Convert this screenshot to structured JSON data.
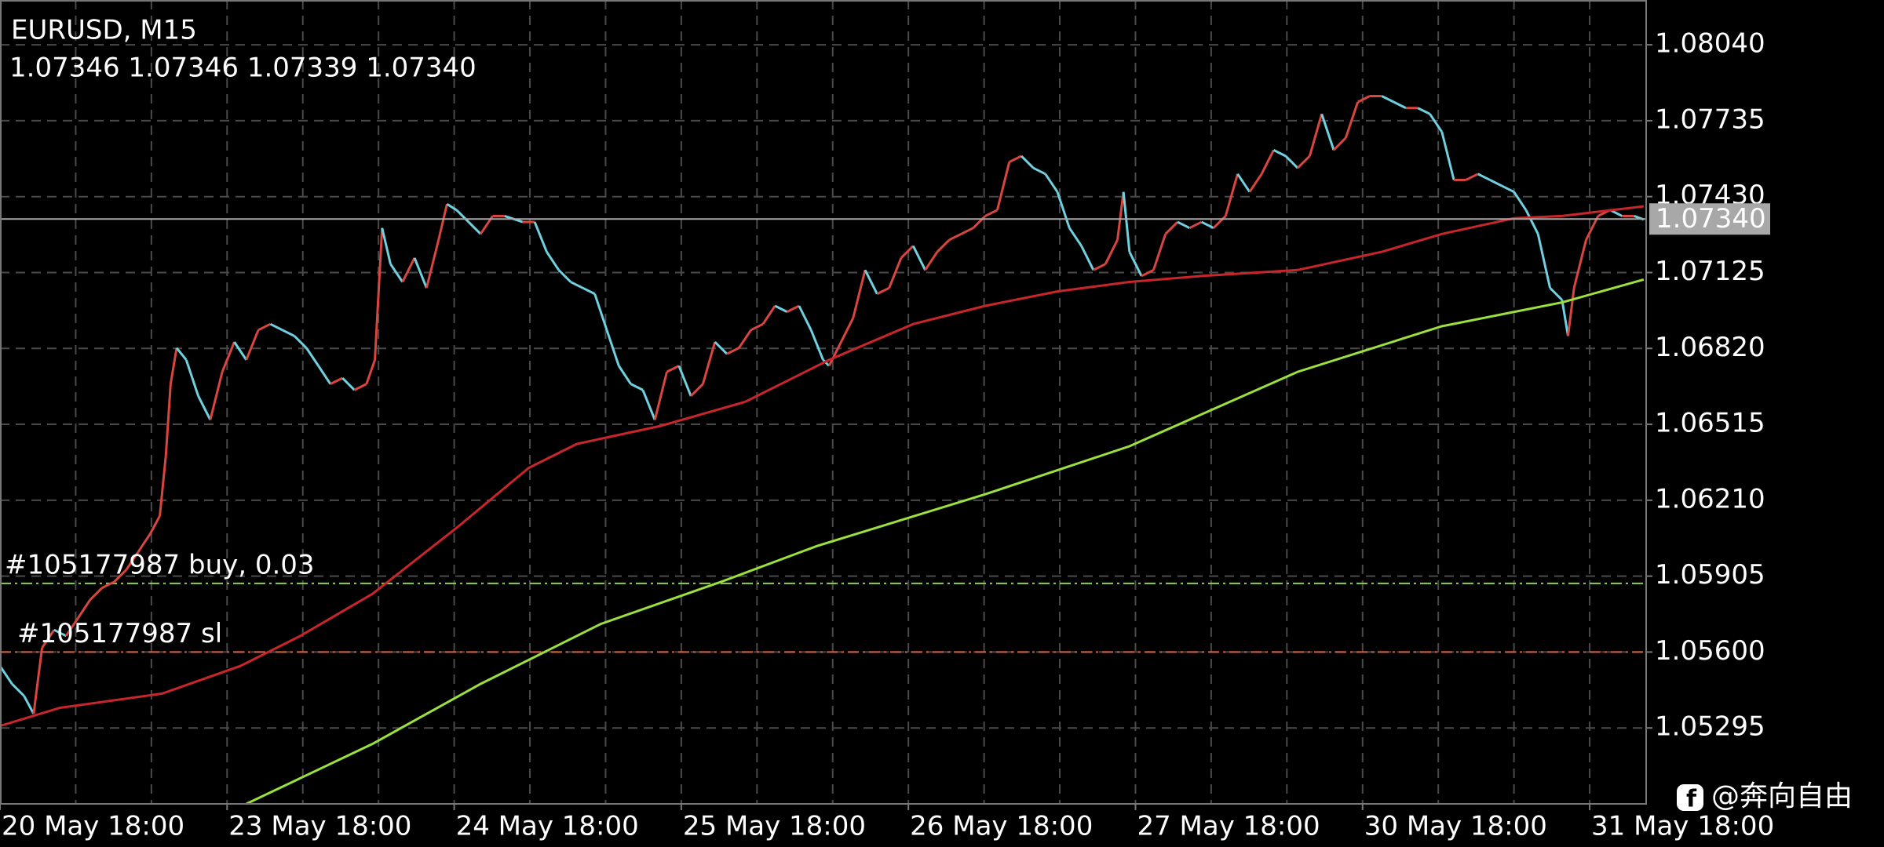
{
  "chart_data": {
    "type": "line",
    "title": "EURUSD, M15",
    "subtitle": "1.07346 1.07346 1.07339 1.07340",
    "xlim": [
      0,
      1370
    ],
    "ylim": [
      1.0499,
      1.0822
    ],
    "xticks": [
      {
        "value": 0,
        "label": "20 May 18:00"
      },
      {
        "value": 63,
        "label": null
      },
      {
        "value": 126,
        "label": null
      },
      {
        "value": 189,
        "label": "23 May 18:00"
      },
      {
        "value": 252,
        "label": null
      },
      {
        "value": 315,
        "label": null
      },
      {
        "value": 378,
        "label": "24 May 18:00"
      },
      {
        "value": 441,
        "label": null
      },
      {
        "value": 504,
        "label": null
      },
      {
        "value": 567,
        "label": "25 May 18:00"
      },
      {
        "value": 630,
        "label": null
      },
      {
        "value": 693,
        "label": null
      },
      {
        "value": 756,
        "label": "26 May 18:00"
      },
      {
        "value": 819,
        "label": null
      },
      {
        "value": 882,
        "label": null
      },
      {
        "value": 945,
        "label": "27 May 18:00"
      },
      {
        "value": 1008,
        "label": null
      },
      {
        "value": 1071,
        "label": null
      },
      {
        "value": 1134,
        "label": "30 May 18:00"
      },
      {
        "value": 1197,
        "label": null
      },
      {
        "value": 1260,
        "label": null
      },
      {
        "value": 1323,
        "label": "31 May 18:00"
      }
    ],
    "yticks": [
      {
        "value": 1.0804,
        "label": "1.08040"
      },
      1.07735,
      {
        "value": 1.0743,
        "label": "1.07430"
      },
      1.07125,
      {
        "value": 1.0682,
        "label": "1.06820"
      },
      1.06515,
      {
        "value": 1.0621,
        "label": "1.06210"
      },
      1.05905,
      {
        "value": 1.056,
        "label": "1.05600"
      },
      1.05295
    ],
    "grid": true,
    "up_color": "#d9453f",
    "down_color": "#6fd0e0",
    "series": [
      {
        "x": [
          0,
          10,
          20,
          28,
          35,
          45,
          55,
          65,
          75,
          85,
          95,
          105,
          115,
          125,
          133,
          138,
          142,
          147,
          155,
          165,
          175,
          185,
          195,
          205,
          215,
          225,
          235,
          245,
          255,
          265,
          275,
          285,
          295,
          305,
          312,
          318,
          325,
          335,
          345,
          355,
          365,
          372,
          380,
          390,
          400,
          410,
          420,
          435,
          445,
          455,
          465,
          475,
          485,
          495,
          505,
          515,
          525,
          535,
          545,
          555,
          565,
          575,
          585,
          595,
          605,
          615,
          625,
          635,
          645,
          655,
          665,
          675,
          685,
          690,
          700,
          710,
          720,
          730,
          740,
          750,
          760,
          770,
          780,
          790,
          800,
          810,
          820,
          830,
          840,
          850,
          860,
          870,
          880,
          890,
          900,
          910,
          920,
          930,
          935,
          940,
          950,
          960,
          970,
          980,
          990,
          1000,
          1010,
          1020,
          1030,
          1040,
          1050,
          1060,
          1070,
          1080,
          1090,
          1100,
          1110,
          1120,
          1130,
          1140,
          1150,
          1160,
          1170,
          1180,
          1190,
          1200,
          1210,
          1220,
          1230,
          1240,
          1250,
          1260,
          1270,
          1280,
          1290,
          1300,
          1305,
          1310,
          1320,
          1330,
          1340,
          1350,
          1360,
          1368
        ],
        "values": [
          1.05544,
          1.05472,
          1.05424,
          1.05352,
          1.05617,
          1.05689,
          1.05665,
          1.05737,
          1.0581,
          1.05858,
          1.05882,
          1.0593,
          1.06002,
          1.06075,
          1.06147,
          1.06388,
          1.06677,
          1.06822,
          1.06774,
          1.06629,
          1.06533,
          1.06726,
          1.06846,
          1.06774,
          1.06894,
          1.06918,
          1.06894,
          1.0687,
          1.06822,
          1.0675,
          1.06677,
          1.06701,
          1.06653,
          1.06677,
          1.06774,
          1.07304,
          1.07159,
          1.07087,
          1.07184,
          1.07063,
          1.07256,
          1.074,
          1.07376,
          1.07328,
          1.0728,
          1.07352,
          1.07352,
          1.07328,
          1.07328,
          1.07208,
          1.07135,
          1.07087,
          1.07063,
          1.07039,
          1.06894,
          1.0675,
          1.06677,
          1.06653,
          1.06533,
          1.06726,
          1.0675,
          1.06629,
          1.06677,
          1.06846,
          1.06798,
          1.06822,
          1.06894,
          1.06918,
          1.06991,
          1.06967,
          1.06991,
          1.06894,
          1.06774,
          1.0675,
          1.06846,
          1.06942,
          1.07135,
          1.07039,
          1.07063,
          1.07184,
          1.07232,
          1.07135,
          1.07208,
          1.07256,
          1.0728,
          1.07304,
          1.07352,
          1.07376,
          1.07569,
          1.07593,
          1.07545,
          1.07521,
          1.07449,
          1.07304,
          1.07232,
          1.07135,
          1.07159,
          1.07256,
          1.07449,
          1.07208,
          1.07111,
          1.07135,
          1.0728,
          1.07328,
          1.07304,
          1.07328,
          1.07304,
          1.07352,
          1.07521,
          1.07449,
          1.07521,
          1.07617,
          1.07593,
          1.07545,
          1.07593,
          1.07762,
          1.07617,
          1.07666,
          1.0781,
          1.07834,
          1.07834,
          1.0781,
          1.07786,
          1.07786,
          1.07762,
          1.0769,
          1.07497,
          1.07497,
          1.07521,
          1.07497,
          1.07473,
          1.07449,
          1.07376,
          1.0728,
          1.07063,
          1.07015,
          1.0687,
          1.07063,
          1.07256,
          1.07352,
          1.07376,
          1.07352,
          1.07352,
          1.07338
        ]
      },
      {
        "color": "#c8262a",
        "x": [
          0,
          50,
          135,
          200,
          250,
          310,
          380,
          440,
          480,
          550,
          620,
          690,
          760,
          820,
          880,
          940,
          1000,
          1080,
          1150,
          1200,
          1260,
          1300,
          1368
        ],
        "values": [
          1.05303,
          1.05376,
          1.05433,
          1.05544,
          1.05665,
          1.05834,
          1.06099,
          1.0634,
          1.06436,
          1.06509,
          1.06605,
          1.06774,
          1.06918,
          1.06991,
          1.07049,
          1.07087,
          1.07111,
          1.07135,
          1.07208,
          1.0728,
          1.07343,
          1.07352,
          1.07391
        ]
      },
      {
        "color": "#9be03c",
        "x": [
          205,
          310,
          400,
          500,
          600,
          680,
          820,
          940,
          1080,
          1200,
          1300,
          1368
        ],
        "values": [
          1.0499,
          1.05231,
          1.05472,
          1.05713,
          1.05882,
          1.06026,
          1.06234,
          1.06427,
          1.06726,
          1.06909,
          1.07005,
          1.07097
        ]
      }
    ],
    "current_price": {
      "value": 1.0734,
      "label": "1.07340"
    },
    "order_lines": [
      {
        "label": "#105177987 buy, 0.03",
        "value": 1.05876,
        "color": "#8fd04a"
      },
      {
        "label": "#105177987 sl",
        "value": 1.056,
        "color": "#e0603a"
      }
    ]
  },
  "watermark": "@奔向自由"
}
